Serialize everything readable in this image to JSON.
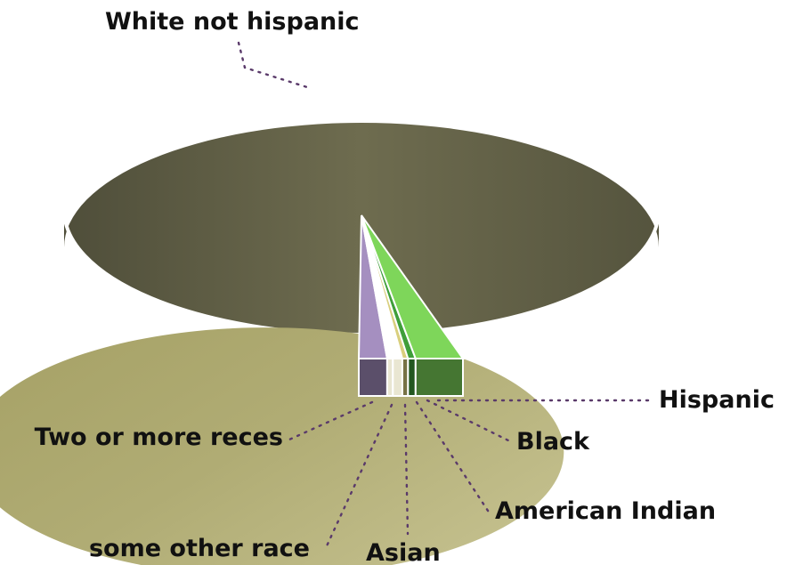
{
  "chart_data": {
    "type": "pie",
    "title": "",
    "three_d": true,
    "legend": "none",
    "slices": [
      {
        "label": "White not hispanic",
        "value": 89.0,
        "color": "#b3b07a"
      },
      {
        "label": "Hispanic",
        "value": 5.0,
        "color": "#7ed65a"
      },
      {
        "label": "Black",
        "value": 0.8,
        "color": "#3f9e3a"
      },
      {
        "label": "American Indian",
        "value": 0.6,
        "color": "#d9cf7e"
      },
      {
        "label": "Asian",
        "value": 1.0,
        "color": "#ffffff"
      },
      {
        "label": "some other race",
        "value": 0.6,
        "color": "#ffffff"
      },
      {
        "label": "Two or more reces",
        "value": 3.0,
        "color": "#a58fc0"
      }
    ]
  }
}
